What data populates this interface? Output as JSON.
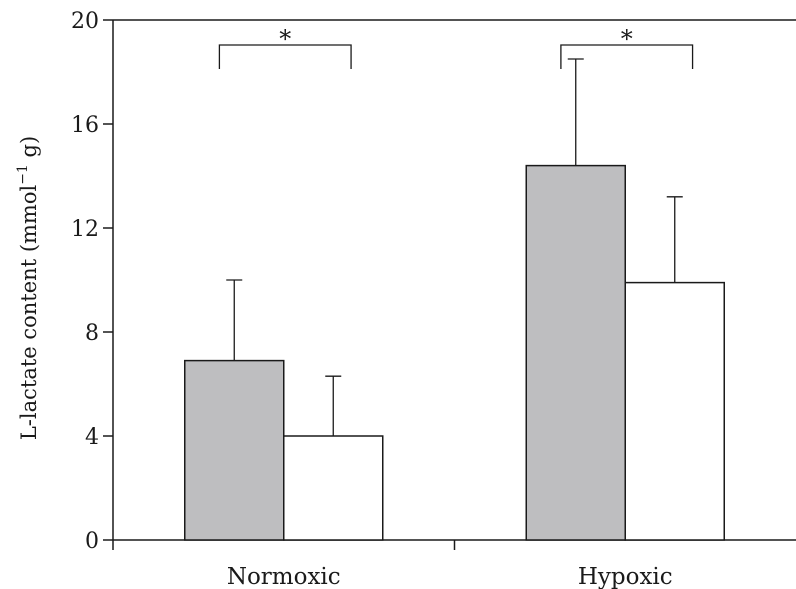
{
  "chart_data": {
    "type": "bar",
    "categories": [
      "Normoxic",
      "Hypoxic"
    ],
    "series": [
      {
        "values": [
          6.9,
          14.4
        ],
        "errors": [
          3.1,
          4.1
        ],
        "color": "#bebec0"
      },
      {
        "values": [
          4.0,
          9.9
        ],
        "errors": [
          2.3,
          3.3
        ],
        "color": "#ffffff"
      }
    ],
    "ylabel_main": "L-lactate content (mmol",
    "ylabel_sup": "−1",
    "ylabel_end": " g)",
    "ylim": [
      0,
      20
    ],
    "yticks": [
      "0",
      "4",
      "8",
      "12",
      "16",
      "20"
    ],
    "significance": [
      "*",
      "*"
    ],
    "grid": false,
    "legend": "none"
  }
}
